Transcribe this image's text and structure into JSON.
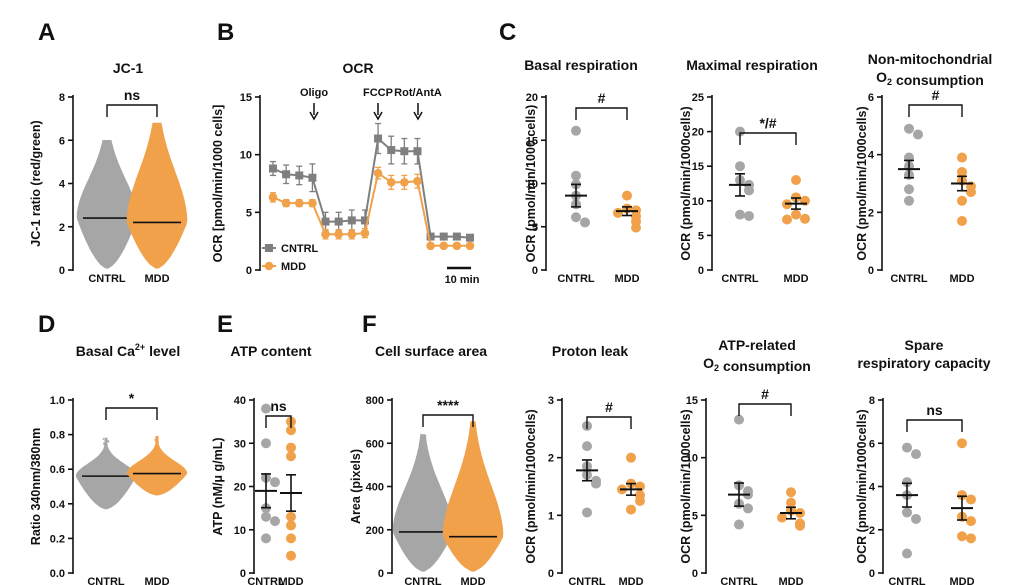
{
  "colors": {
    "cntrl": "#a6a6a6",
    "mdd": "#f0a14a",
    "cntrl_dark": "#7f7f7f",
    "axis": "#111111"
  },
  "chart_data": [
    {
      "id": "A",
      "letter": "A",
      "type": "violin-scatter",
      "title": "JC-1",
      "ylabel": "JC-1 ratio (red/green)",
      "ylim": [
        0,
        8
      ],
      "yticks": [
        0,
        2,
        4,
        6,
        8
      ],
      "categories": [
        "CNTRL",
        "MDD"
      ],
      "max": [
        6.0,
        6.8
      ],
      "median": [
        2.4,
        2.2
      ],
      "significance": "ns"
    },
    {
      "id": "B",
      "letter": "B",
      "type": "line",
      "title": "OCR",
      "ylabel": "OCR [pmol/min/1000 cells]",
      "ylim": [
        0,
        15
      ],
      "yticks": [
        0,
        5,
        10,
        15
      ],
      "annotations": [
        "Oligo",
        "FCCP",
        "Rot/AntA"
      ],
      "scalebar": "10 min",
      "series": [
        {
          "name": "CNTRL",
          "values": [
            8.8,
            8.3,
            8.2,
            8.0,
            4.2,
            4.2,
            4.3,
            4.3,
            11.4,
            10.4,
            10.3,
            10.3,
            2.9,
            2.9,
            2.9,
            2.8
          ],
          "errors": [
            0.6,
            0.8,
            0.8,
            1.2,
            0.8,
            0.8,
            0.9,
            0.9,
            1.3,
            1.2,
            1.1,
            1.1,
            0.2,
            0.2,
            0.2,
            0.2
          ]
        },
        {
          "name": "MDD",
          "values": [
            6.3,
            5.8,
            5.8,
            5.8,
            3.1,
            3.1,
            3.1,
            3.2,
            8.4,
            7.6,
            7.6,
            7.7,
            2.1,
            2.1,
            2.1,
            2.1
          ],
          "errors": [
            0.4,
            0.3,
            0.3,
            0.3,
            0.4,
            0.4,
            0.4,
            0.4,
            0.5,
            0.6,
            0.6,
            0.6,
            0.1,
            0.1,
            0.1,
            0.1
          ]
        }
      ]
    },
    {
      "id": "C1",
      "letter": "C",
      "type": "scatter",
      "title": "Basal respiration",
      "ylabel": "OCR (pmol/min/1000 cells)",
      "ylim": [
        0,
        20
      ],
      "yticks": [
        0,
        5,
        10,
        15,
        20
      ],
      "categories": [
        "CNTRL",
        "MDD"
      ],
      "points": [
        [
          16.1,
          10.9,
          9.9,
          8.6,
          7.6,
          6.1,
          5.5
        ],
        [
          8.6,
          7.1,
          6.9,
          6.6,
          6.2,
          5.6,
          4.9
        ]
      ],
      "mean": [
        8.6,
        6.8
      ],
      "sem": [
        1.3,
        0.5
      ],
      "significance": "#"
    },
    {
      "id": "C2",
      "type": "scatter",
      "title": "Maximal respiration",
      "ylabel": "OCR (pmol/min/1000cells)",
      "ylim": [
        0,
        25
      ],
      "yticks": [
        0,
        5,
        10,
        15,
        20,
        25
      ],
      "categories": [
        "CNTRL",
        "MDD"
      ],
      "points": [
        [
          20.0,
          15.0,
          13.0,
          12.3,
          11.5,
          8.0,
          7.8
        ],
        [
          13.0,
          10.5,
          10.0,
          9.5,
          8.0,
          7.3,
          7.4
        ]
      ],
      "mean": [
        12.3,
        9.6
      ],
      "sem": [
        1.6,
        0.8
      ],
      "significance": "*/#"
    },
    {
      "id": "C3",
      "type": "scatter",
      "title": "Non-mitochondrial O₂ consumption",
      "ylabel": "OCR (pmol/min/1000cells)",
      "ylim": [
        0,
        6
      ],
      "yticks": [
        0,
        2,
        4,
        6
      ],
      "categories": [
        "CNTRL",
        "MDD"
      ],
      "points": [
        [
          4.9,
          4.7,
          3.9,
          3.6,
          3.3,
          2.8,
          2.4
        ],
        [
          3.9,
          3.4,
          3.1,
          2.9,
          2.7,
          2.4,
          1.7
        ]
      ],
      "mean": [
        3.5,
        3.0
      ],
      "sem": [
        0.3,
        0.25
      ],
      "significance": "#"
    },
    {
      "id": "D",
      "letter": "D",
      "type": "violin-scatter",
      "title": "Basal Ca2+ level",
      "title_main": "Basal Ca",
      "title_sup": "2+",
      "title_rest": " level",
      "ylabel": "Ratio 340nm/380nm",
      "ylim": [
        0.0,
        1.0
      ],
      "yticks": [
        0.0,
        0.2,
        0.4,
        0.6,
        0.8,
        1.0
      ],
      "categories": [
        "CNTRL",
        "MDD"
      ],
      "min": [
        0.37,
        0.45
      ],
      "max": [
        0.78,
        0.79
      ],
      "median": [
        0.56,
        0.575
      ],
      "significance": "*"
    },
    {
      "id": "E",
      "letter": "E",
      "type": "scatter",
      "title": "ATP content",
      "ylabel": "ATP (nM/μ g/mL)",
      "ylim": [
        0,
        40
      ],
      "yticks": [
        0,
        10,
        20,
        30,
        40
      ],
      "categories": [
        "CNTRL",
        "MDD"
      ],
      "points": [
        [
          38,
          30,
          22,
          21,
          15,
          13,
          12,
          8
        ],
        [
          35,
          33,
          29,
          27,
          13,
          11,
          8,
          4
        ]
      ],
      "mean": [
        19,
        18.5
      ],
      "sem": [
        3.9,
        4.2
      ],
      "significance": "ns"
    },
    {
      "id": "F",
      "letter": "F",
      "type": "violin-scatter",
      "title": "Cell surface area",
      "ylabel": "Area (pixels)",
      "ylim": [
        0,
        800
      ],
      "yticks": [
        0,
        200,
        400,
        600,
        800
      ],
      "categories": [
        "CNTRL",
        "MDD"
      ],
      "max": [
        640,
        700
      ],
      "median": [
        190,
        168
      ],
      "significance": "****"
    },
    {
      "id": "G1",
      "type": "scatter",
      "title": "Proton leak",
      "ylabel": "OCR (pmol/min/1000cells)",
      "ylim": [
        0,
        3
      ],
      "yticks": [
        0,
        1,
        2,
        3
      ],
      "categories": [
        "CNTRL",
        "MDD"
      ],
      "points": [
        [
          2.55,
          2.2,
          1.85,
          1.7,
          1.6,
          1.55,
          1.05
        ],
        [
          2.0,
          1.55,
          1.5,
          1.45,
          1.35,
          1.25,
          1.1
        ]
      ],
      "mean": [
        1.78,
        1.45
      ],
      "sem": [
        0.18,
        0.1
      ],
      "significance": "#"
    },
    {
      "id": "G2",
      "type": "scatter",
      "title": "ATP-related O₂ consumption",
      "ylabel": "OCR (pmol/min/1000cells)",
      "ylim": [
        0,
        15
      ],
      "yticks": [
        0,
        5,
        10,
        15
      ],
      "categories": [
        "CNTRL",
        "MDD"
      ],
      "points": [
        [
          13.3,
          7.6,
          7.1,
          6.8,
          6.0,
          5.6,
          4.2
        ],
        [
          7.0,
          6.1,
          5.4,
          5.2,
          4.8,
          4.3,
          4.1
        ]
      ],
      "mean": [
        6.8,
        5.2
      ],
      "sem": [
        1.0,
        0.5
      ],
      "significance": "#"
    },
    {
      "id": "G3",
      "type": "scatter",
      "title": "Spare respiratory capacity",
      "ylabel": "OCR (pmol/min/1000cells)",
      "ylim": [
        0,
        8
      ],
      "yticks": [
        0,
        2,
        4,
        6,
        8
      ],
      "categories": [
        "CNTRL",
        "MDD"
      ],
      "points": [
        [
          5.8,
          5.5,
          4.2,
          3.6,
          2.8,
          2.5,
          0.9
        ],
        [
          6.0,
          3.6,
          3.4,
          2.6,
          2.4,
          1.7,
          1.6
        ]
      ],
      "mean": [
        3.6,
        3.0
      ],
      "sem": [
        0.55,
        0.55
      ],
      "significance": "ns"
    }
  ]
}
